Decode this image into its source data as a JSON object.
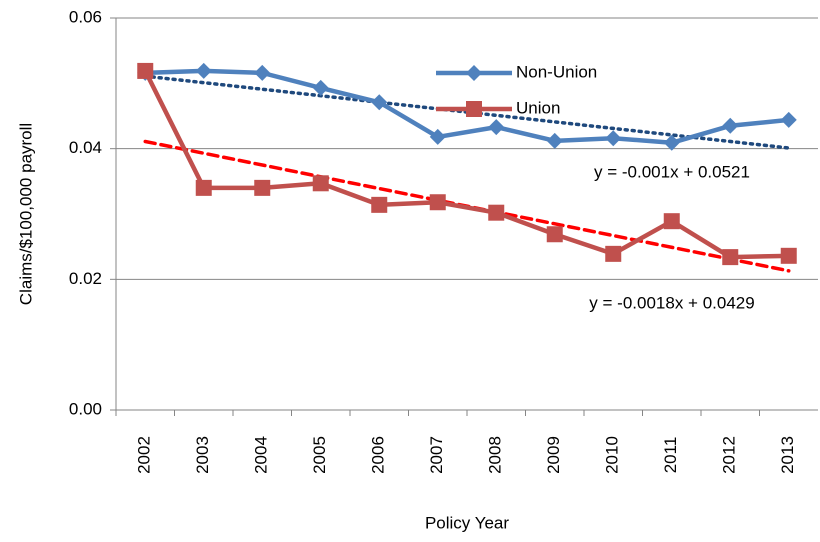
{
  "chart_data": {
    "type": "line",
    "xlabel": "Policy Year",
    "ylabel": "Claims/$100,000 payroll",
    "categories": [
      "2002",
      "2003",
      "2004",
      "2005",
      "2006",
      "2007",
      "2008",
      "2009",
      "2010",
      "2011",
      "2012",
      "2013"
    ],
    "series": [
      {
        "name": "Non-Union",
        "color": "#4f81bd",
        "marker": "diamond",
        "values": [
          0.0516,
          0.0519,
          0.0516,
          0.0493,
          0.0471,
          0.0418,
          0.0433,
          0.0412,
          0.0416,
          0.0409,
          0.0435,
          0.0444
        ]
      },
      {
        "name": "Union",
        "color": "#c0504d",
        "marker": "square",
        "values": [
          0.0519,
          0.034,
          0.034,
          0.0347,
          0.0314,
          0.0318,
          0.0302,
          0.0269,
          0.0239,
          0.0289,
          0.0234,
          0.0236
        ]
      }
    ],
    "trendlines": [
      {
        "slope": -0.001,
        "intercept": 0.0521,
        "label": "y = -0.001x + 0.0521",
        "color": "#1f497d",
        "style": "dotted"
      },
      {
        "slope": -0.0018,
        "intercept": 0.0429,
        "label": "y = -0.0018x + 0.0429",
        "color": "#ff0000",
        "style": "dashed"
      }
    ],
    "ylim": [
      0,
      0.06
    ],
    "yticks": [
      {
        "value": 0,
        "label": "0.00"
      },
      0.02,
      0.04,
      0.06
    ],
    "grid": true,
    "legend": "upper-center"
  }
}
